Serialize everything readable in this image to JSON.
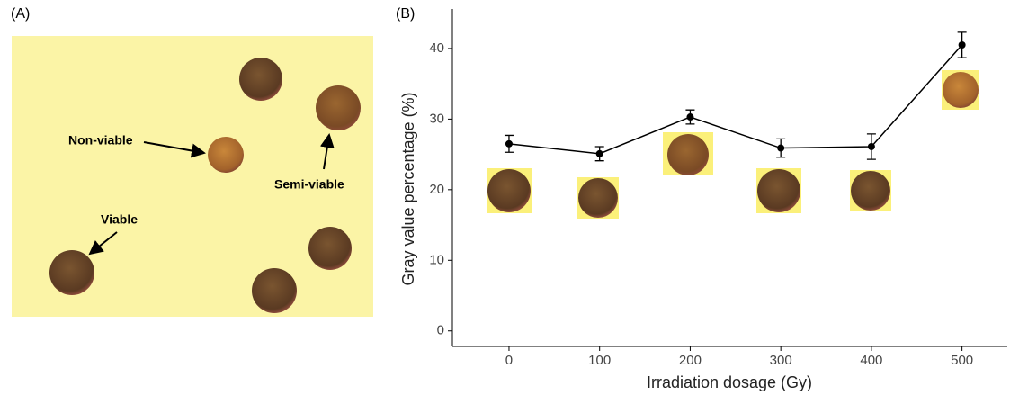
{
  "panel_a": {
    "label": "(A)",
    "annotations": [
      "Non-viable",
      "Semi-viable",
      "Viable"
    ]
  },
  "chart_data": {
    "type": "line",
    "panel_label": "(B)",
    "x_label": "Irradiation dosage (Gy)",
    "y_label": "Gray value percentage (%)",
    "x": [
      0,
      100,
      200,
      300,
      400,
      500
    ],
    "series": [
      {
        "color": "#000000",
        "values": [
          26.5,
          25.1,
          30.3,
          25.9,
          26.1,
          40.5
        ],
        "errors": [
          1.2,
          1.0,
          1.0,
          1.3,
          1.8,
          1.8
        ]
      }
    ],
    "xlim": [
      -62.5,
      550
    ],
    "xticks": [
      0,
      100,
      200,
      300,
      400,
      500
    ],
    "ylim": [
      -2.2,
      45.6
    ],
    "yticks": [
      0,
      10,
      20,
      30,
      40
    ],
    "grid": false
  }
}
